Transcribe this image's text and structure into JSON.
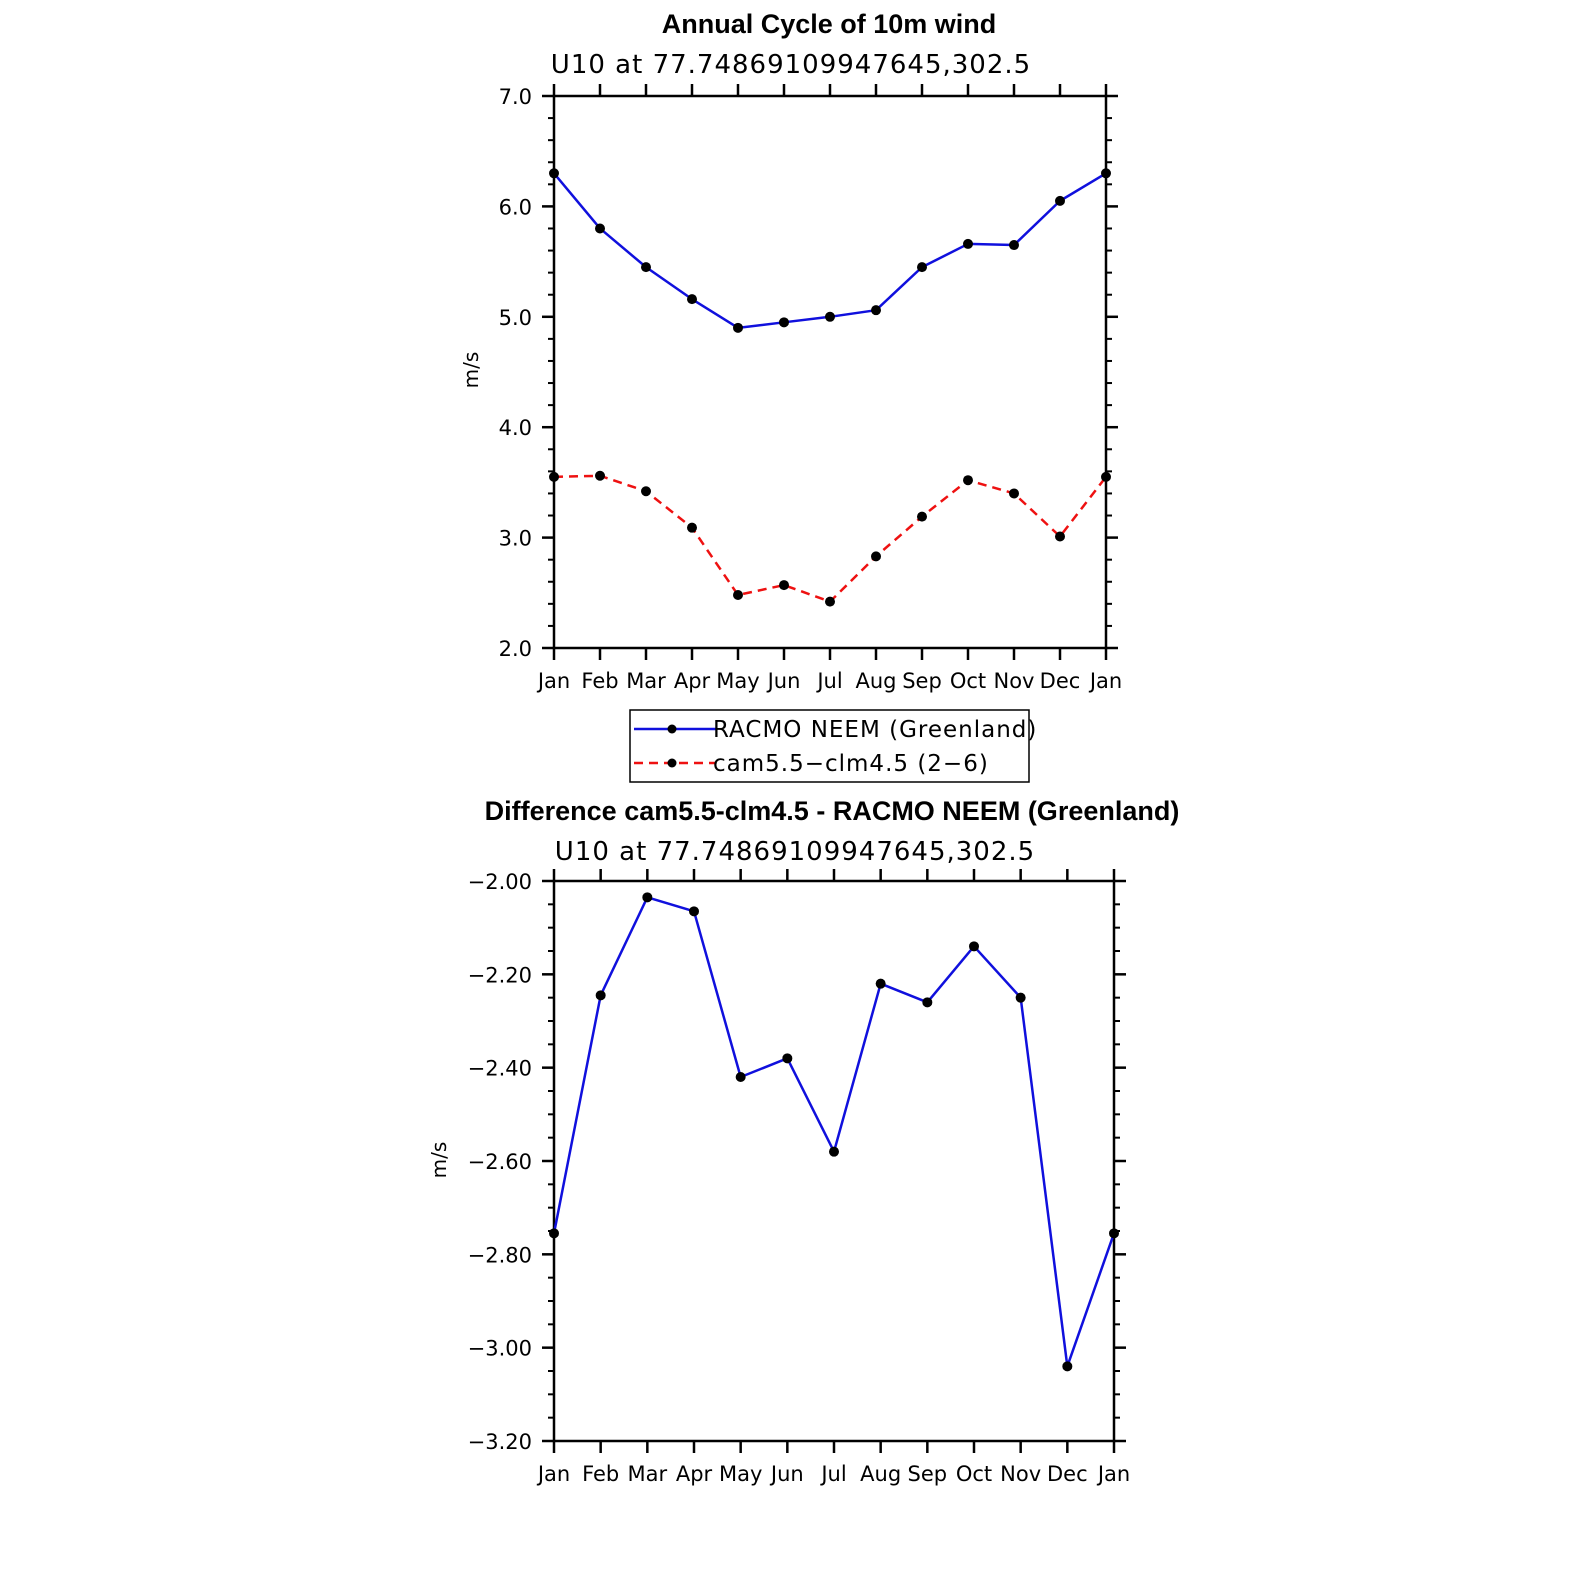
{
  "chart_data": [
    {
      "type": "line",
      "title": "Annual Cycle of 10m wind",
      "subtitle": "U10 at 77.74869109947645,302.5",
      "xlabel": "",
      "ylabel": "m/s",
      "categories": [
        "Jan",
        "Feb",
        "Mar",
        "Apr",
        "May",
        "Jun",
        "Jul",
        "Aug",
        "Sep",
        "Oct",
        "Nov",
        "Dec",
        "Jan"
      ],
      "ylim": [
        2.0,
        7.0
      ],
      "yticks": [
        "2.0",
        "3.0",
        "4.0",
        "5.0",
        "6.0",
        "7.0"
      ],
      "series": [
        {
          "name": "RACMO NEEM (Greenland)",
          "color": "#1010dd",
          "dash": "solid",
          "values": [
            6.3,
            5.8,
            5.45,
            5.16,
            4.9,
            4.95,
            5.0,
            5.06,
            5.45,
            5.66,
            5.65,
            6.05,
            6.3
          ]
        },
        {
          "name": "cam5.5−clm4.5 (2−6)",
          "color": "#ee1111",
          "dash": "dashed",
          "values": [
            3.55,
            3.56,
            3.42,
            3.09,
            2.48,
            2.57,
            2.42,
            2.83,
            3.19,
            3.52,
            3.4,
            3.01,
            3.55
          ]
        }
      ],
      "legend": "below"
    },
    {
      "type": "line",
      "title": "Difference cam5.5-clm4.5 - RACMO NEEM (Greenland)",
      "subtitle": "U10 at 77.74869109947645,302.5",
      "xlabel": "",
      "ylabel": "m/s",
      "categories": [
        "Jan",
        "Feb",
        "Mar",
        "Apr",
        "May",
        "Jun",
        "Jul",
        "Aug",
        "Sep",
        "Oct",
        "Nov",
        "Dec",
        "Jan"
      ],
      "ylim": [
        -3.2,
        -2.0
      ],
      "yticks": [
        "−2.00",
        "−2.20",
        "−2.40",
        "−2.60",
        "−2.80",
        "−3.00",
        "−3.20"
      ],
      "yticks_values": [
        -2.0,
        -2.2,
        -2.4,
        -2.6,
        -2.8,
        -3.0,
        -3.2
      ],
      "series": [
        {
          "color": "#1010dd",
          "dash": "solid",
          "values": [
            -2.755,
            -2.245,
            -2.035,
            -2.065,
            -2.42,
            -2.38,
            -2.58,
            -2.22,
            -2.26,
            -2.14,
            -2.25,
            -3.04,
            -2.755
          ]
        }
      ]
    }
  ]
}
